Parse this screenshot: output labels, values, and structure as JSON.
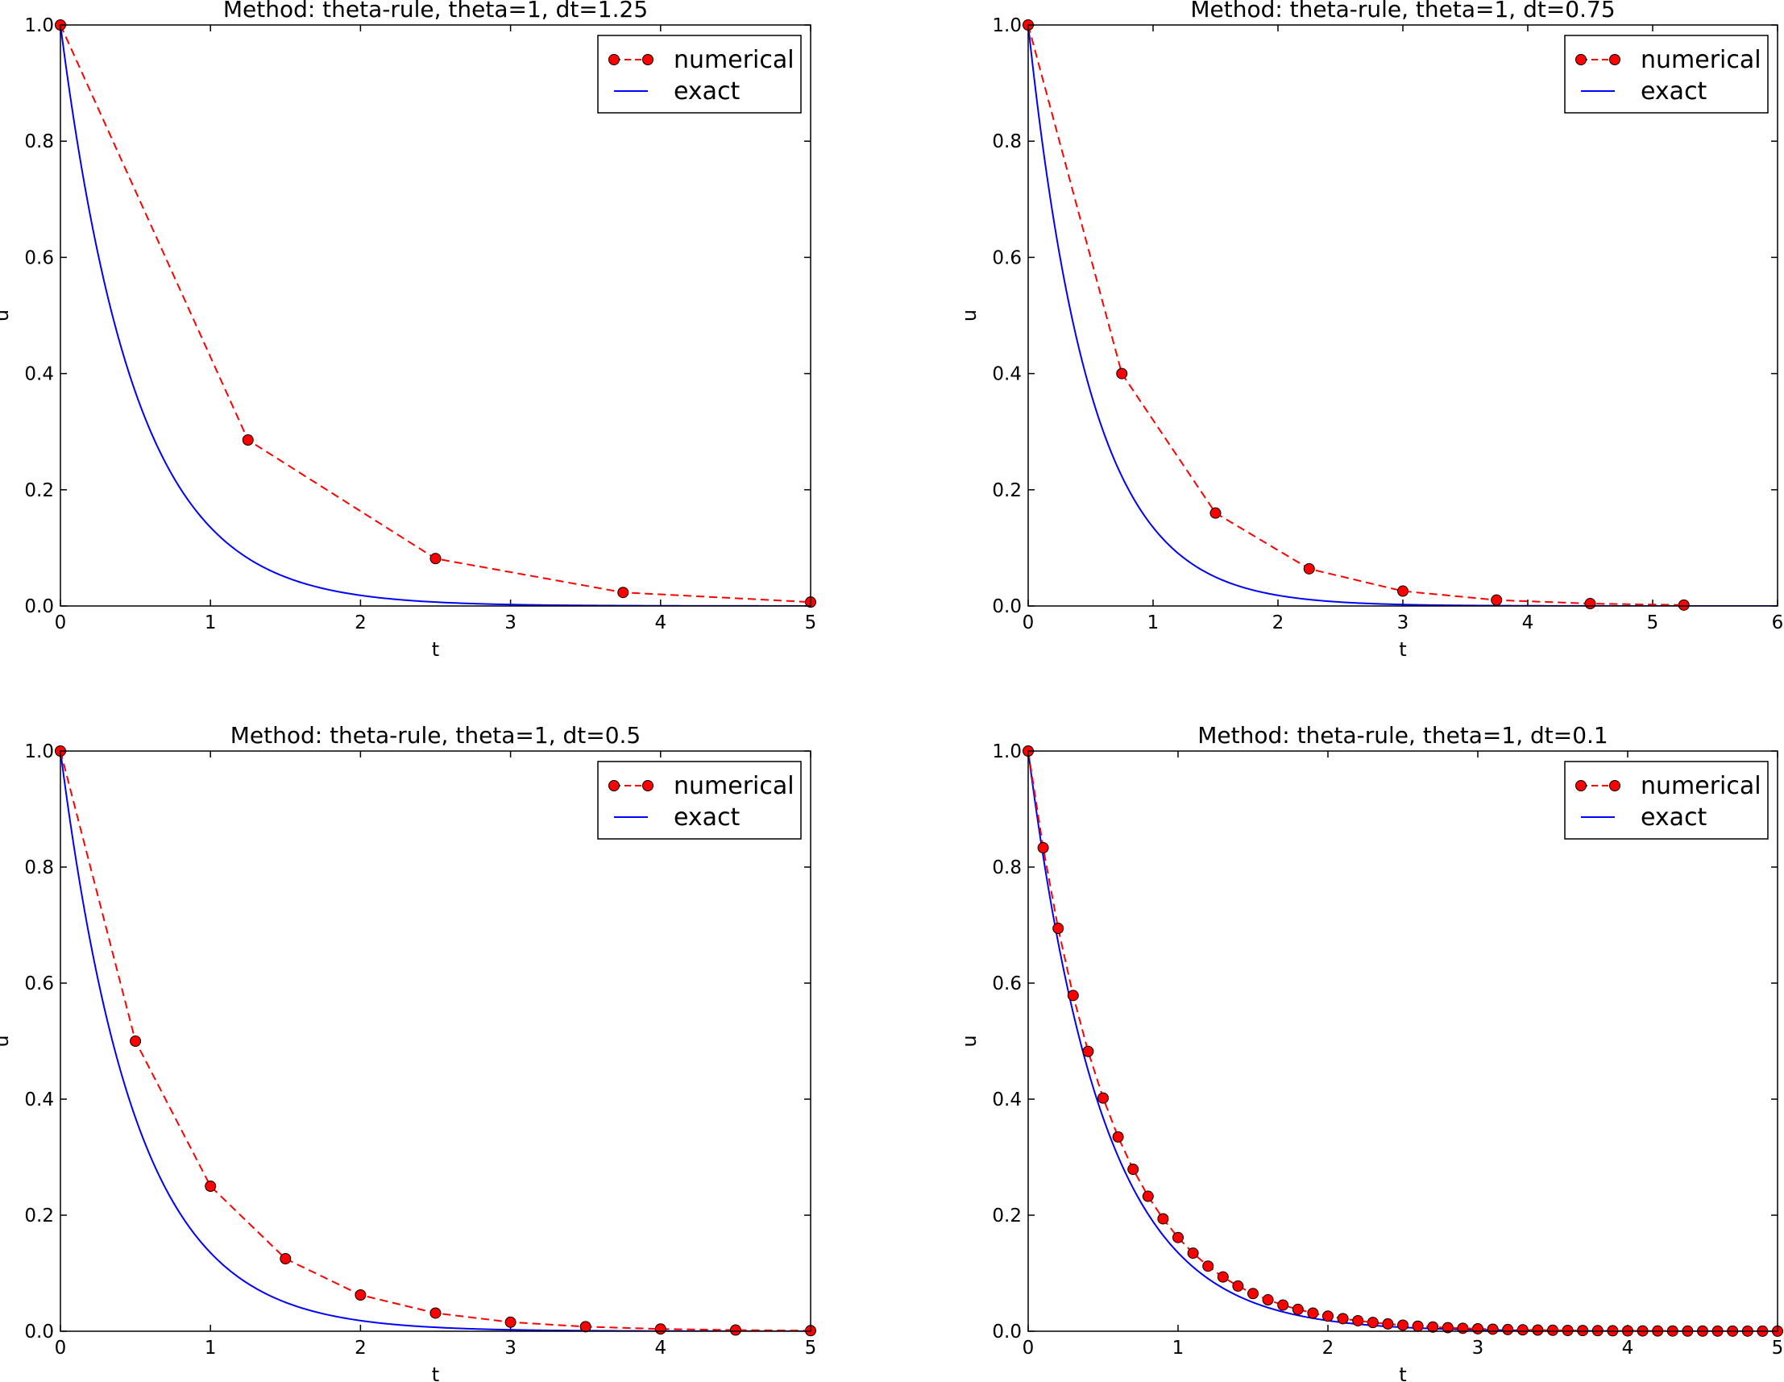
{
  "chart_data": [
    {
      "type": "line",
      "title": "Method: theta-rule, theta=1, dt=1.25",
      "xlabel": "t",
      "ylabel": "u",
      "xlim": [
        0,
        5
      ],
      "ylim": [
        0,
        1.0
      ],
      "xticks": [
        "0",
        "1",
        "2",
        "3",
        "4",
        "5"
      ],
      "yticks": [
        "0.0",
        "0.2",
        "0.4",
        "0.6",
        "0.8",
        "1.0"
      ],
      "dt": 1.25,
      "decay_rate": 2,
      "legend_position": "top-right",
      "series": [
        {
          "name": "numerical",
          "style": "red dashed with circle markers",
          "color": "#ff0000",
          "x": [
            0,
            1.25,
            2.5,
            3.75,
            5.0
          ],
          "y": [
            1.0,
            0.2857,
            0.0816,
            0.0233,
            0.0067
          ]
        },
        {
          "name": "exact",
          "style": "solid blue",
          "color": "#0000ff",
          "formula": "exp(-2t)"
        }
      ]
    },
    {
      "type": "line",
      "title": "Method: theta-rule, theta=1, dt=0.75",
      "xlabel": "t",
      "ylabel": "u",
      "xlim": [
        0,
        6
      ],
      "ylim": [
        0,
        1.0
      ],
      "xticks": [
        "0",
        "1",
        "2",
        "3",
        "4",
        "5",
        "6"
      ],
      "yticks": [
        "0.0",
        "0.2",
        "0.4",
        "0.6",
        "0.8",
        "1.0"
      ],
      "dt": 0.75,
      "decay_rate": 2,
      "legend_position": "top-right",
      "series": [
        {
          "name": "numerical",
          "style": "red dashed with circle markers",
          "color": "#ff0000",
          "x": [
            0,
            0.75,
            1.5,
            2.25,
            3.0,
            3.75,
            4.5,
            5.25
          ],
          "y": [
            1.0,
            0.4,
            0.16,
            0.064,
            0.0256,
            0.0102,
            0.0041,
            0.0016
          ]
        },
        {
          "name": "exact",
          "style": "solid blue",
          "color": "#0000ff",
          "formula": "exp(-2t)"
        }
      ]
    },
    {
      "type": "line",
      "title": "Method: theta-rule, theta=1, dt=0.5",
      "xlabel": "t",
      "ylabel": "u",
      "xlim": [
        0,
        5
      ],
      "ylim": [
        0,
        1.0
      ],
      "xticks": [
        "0",
        "1",
        "2",
        "3",
        "4",
        "5"
      ],
      "yticks": [
        "0.0",
        "0.2",
        "0.4",
        "0.6",
        "0.8",
        "1.0"
      ],
      "dt": 0.5,
      "decay_rate": 2,
      "legend_position": "top-right",
      "series": [
        {
          "name": "numerical",
          "style": "red dashed with circle markers",
          "color": "#ff0000",
          "x": [
            0,
            0.5,
            1.0,
            1.5,
            2.0,
            2.5,
            3.0,
            3.5,
            4.0,
            4.5,
            5.0
          ],
          "y": [
            1.0,
            0.5,
            0.25,
            0.125,
            0.0625,
            0.0313,
            0.0156,
            0.0078,
            0.0039,
            0.002,
            0.001
          ]
        },
        {
          "name": "exact",
          "style": "solid blue",
          "color": "#0000ff",
          "formula": "exp(-2t)"
        }
      ]
    },
    {
      "type": "line",
      "title": "Method: theta-rule, theta=1, dt=0.1",
      "xlabel": "t",
      "ylabel": "u",
      "xlim": [
        0,
        5
      ],
      "ylim": [
        0,
        1.0
      ],
      "xticks": [
        "0",
        "1",
        "2",
        "3",
        "4",
        "5"
      ],
      "yticks": [
        "0.0",
        "0.2",
        "0.4",
        "0.6",
        "0.8",
        "1.0"
      ],
      "dt": 0.1,
      "decay_rate": 2,
      "legend_position": "top-right",
      "series": [
        {
          "name": "numerical",
          "style": "red dashed with circle markers",
          "color": "#ff0000",
          "x": [
            0,
            0.1,
            0.2,
            0.3,
            0.4,
            0.5,
            0.6,
            0.7,
            0.8,
            0.9,
            1.0,
            1.1,
            1.2,
            1.3,
            1.4,
            1.5,
            1.6,
            1.7,
            1.8,
            1.9,
            2.0,
            2.1,
            2.2,
            2.3,
            2.4,
            2.5,
            2.6,
            2.7,
            2.8,
            2.9,
            3.0,
            3.1,
            3.2,
            3.3,
            3.4,
            3.5,
            3.6,
            3.7,
            3.8,
            3.9,
            4.0,
            4.1,
            4.2,
            4.3,
            4.4,
            4.5,
            4.6,
            4.7,
            4.8,
            4.9,
            5.0
          ],
          "y": [
            1.0,
            0.8333,
            0.6944,
            0.5787,
            0.4823,
            0.4019,
            0.3349,
            0.2791,
            0.2326,
            0.1938,
            0.1615,
            0.1346,
            0.1122,
            0.0935,
            0.0779,
            0.0649,
            0.0541,
            0.0451,
            0.0376,
            0.0313,
            0.0261,
            0.0217,
            0.0181,
            0.0151,
            0.0126,
            0.0105,
            0.0087,
            0.0073,
            0.0061,
            0.0051,
            0.0042,
            0.0035,
            0.0029,
            0.0024,
            0.002,
            0.0017,
            0.0014,
            0.0012,
            0.001,
            0.0008,
            0.0007,
            0.0006,
            0.0005,
            0.0004,
            0.0003,
            0.0003,
            0.0002,
            0.0002,
            0.0002,
            0.0001,
            0.0001
          ]
        },
        {
          "name": "exact",
          "style": "solid blue",
          "color": "#0000ff",
          "formula": "exp(-2t)"
        }
      ]
    }
  ]
}
